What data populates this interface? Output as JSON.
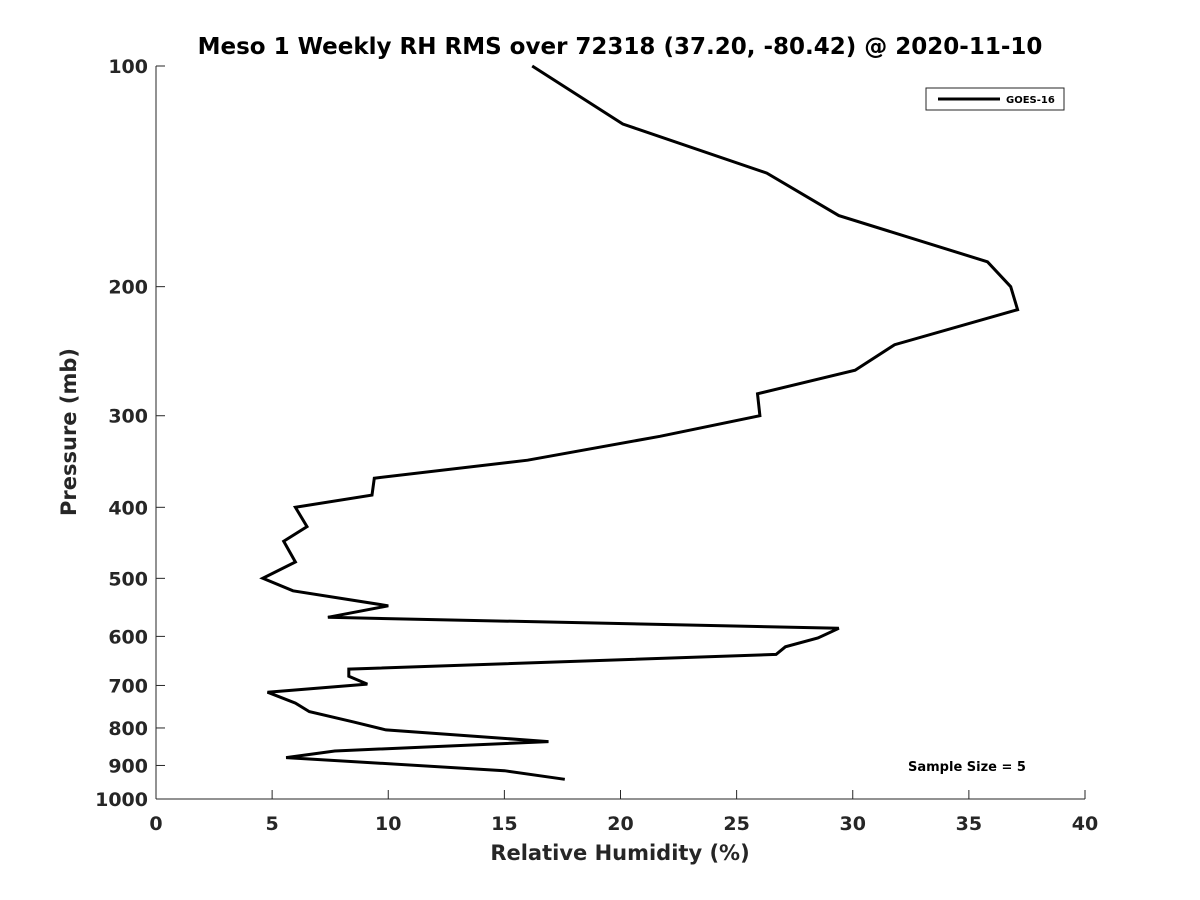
{
  "chart_data": {
    "type": "line",
    "title": "Meso 1 Weekly RH RMS over 72318 (37.20, -80.42) @ 2020-11-10",
    "xlabel": "Relative Humidity (%)",
    "ylabel": "Pressure (mb)",
    "xlim": [
      0,
      40
    ],
    "ylim": [
      100,
      1000
    ],
    "y_scale": "log",
    "y_reversed": true,
    "xticks": [
      0,
      5,
      10,
      15,
      20,
      25,
      30,
      35,
      40
    ],
    "yticks": [
      100,
      200,
      300,
      400,
      500,
      600,
      700,
      800,
      900,
      1000
    ],
    "grid": false,
    "legend": {
      "position": "top-right"
    },
    "annotation": "Sample Size = 5",
    "series": [
      {
        "name": "GOES-16",
        "color": "#000000",
        "points": [
          [
            16.2,
            100
          ],
          [
            20.1,
            120
          ],
          [
            26.3,
            140
          ],
          [
            29.4,
            160
          ],
          [
            35.8,
            185
          ],
          [
            36.8,
            200
          ],
          [
            37.1,
            215
          ],
          [
            31.8,
            240
          ],
          [
            30.1,
            260
          ],
          [
            25.9,
            280
          ],
          [
            26.0,
            300
          ],
          [
            21.7,
            320
          ],
          [
            16.0,
            345
          ],
          [
            9.4,
            365
          ],
          [
            9.3,
            385
          ],
          [
            6.0,
            400
          ],
          [
            6.5,
            425
          ],
          [
            5.5,
            445
          ],
          [
            6.0,
            475
          ],
          [
            4.6,
            500
          ],
          [
            5.9,
            520
          ],
          [
            10.0,
            545
          ],
          [
            7.4,
            565
          ],
          [
            29.4,
            585
          ],
          [
            28.5,
            603
          ],
          [
            27.1,
            620
          ],
          [
            26.7,
            635
          ],
          [
            8.3,
            665
          ],
          [
            8.3,
            680
          ],
          [
            9.1,
            697
          ],
          [
            4.8,
            715
          ],
          [
            6.0,
            740
          ],
          [
            6.6,
            760
          ],
          [
            8.5,
            785
          ],
          [
            9.9,
            805
          ],
          [
            16.9,
            835
          ],
          [
            7.7,
            860
          ],
          [
            5.6,
            878
          ],
          [
            15.0,
            915
          ],
          [
            17.6,
            940
          ]
        ]
      }
    ]
  }
}
